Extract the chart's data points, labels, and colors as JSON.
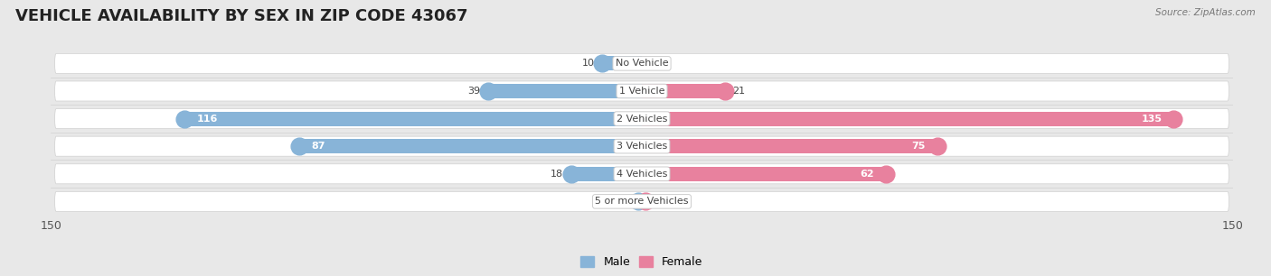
{
  "title": "VEHICLE AVAILABILITY BY SEX IN ZIP CODE 43067",
  "source": "Source: ZipAtlas.com",
  "categories": [
    "No Vehicle",
    "1 Vehicle",
    "2 Vehicles",
    "3 Vehicles",
    "4 Vehicles",
    "5 or more Vehicles"
  ],
  "male_values": [
    10,
    39,
    116,
    87,
    18,
    1
  ],
  "female_values": [
    0,
    21,
    135,
    75,
    62,
    1
  ],
  "male_color": "#88b4d8",
  "female_color": "#e8819e",
  "male_color_light": "#b8d0e8",
  "female_color_light": "#f0afc2",
  "xlim": 150,
  "row_bg_color": "#ececec",
  "row_pill_color": "#f5f5f5",
  "title_fontsize": 13,
  "label_fontsize": 8,
  "value_fontsize": 8,
  "axis_label_fontsize": 9,
  "legend_fontsize": 9,
  "fig_bg": "#e8e8e8"
}
